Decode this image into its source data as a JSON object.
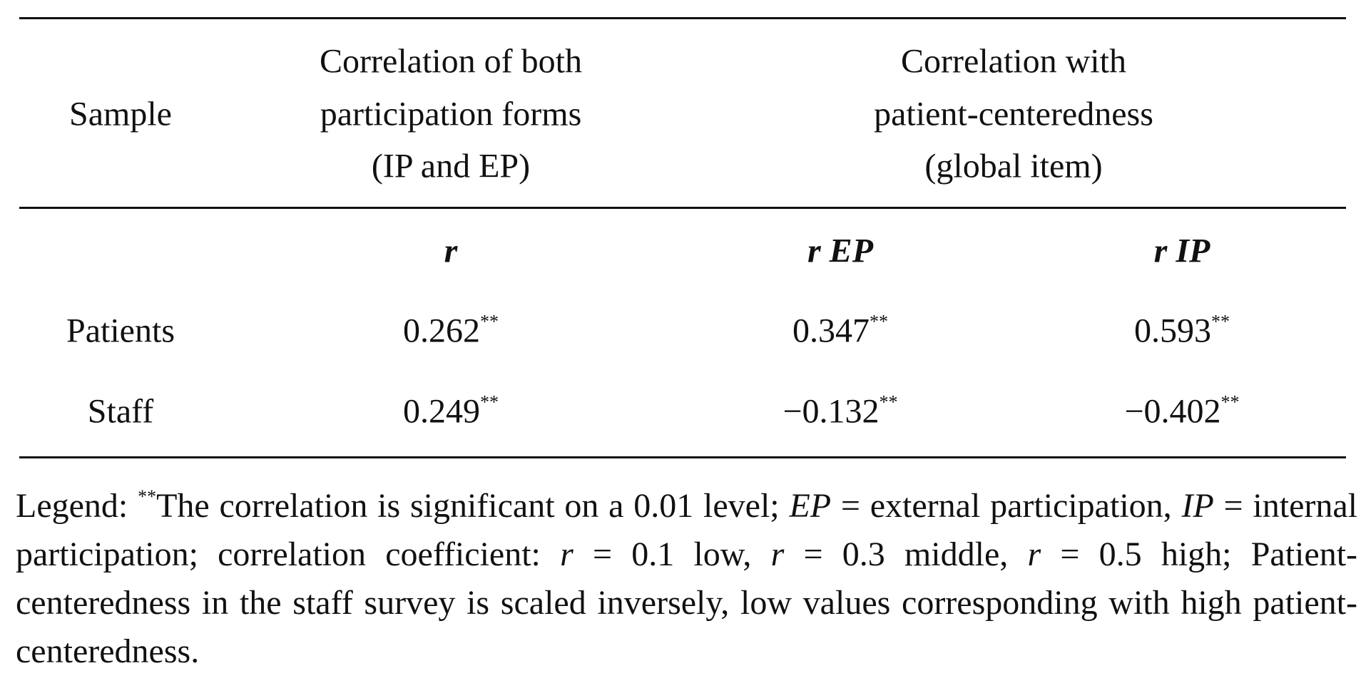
{
  "table": {
    "header": [
      "Sample",
      [
        "Correlation of both",
        "participation forms",
        "(IP and EP)"
      ],
      [
        "Correlation with",
        "patient-centeredness",
        "(global item)"
      ]
    ],
    "subheader": [
      "r",
      "r EP",
      "r IP"
    ],
    "rows": [
      {
        "label": "Patients",
        "cells": [
          {
            "value": "0.262",
            "note": "**"
          },
          {
            "value": "0.347",
            "note": "**"
          },
          {
            "value": "0.593",
            "note": "**"
          }
        ]
      },
      {
        "label": "Staff",
        "cells": [
          {
            "value": "0.249",
            "note": "**"
          },
          {
            "value": "−0.132",
            "note": "**"
          },
          {
            "value": "−0.402",
            "note": "**"
          }
        ]
      }
    ]
  },
  "legend": [
    "Legend: ",
    "**",
    "The correlation is significant on a 0.01 level; ",
    "EP",
    " = external participation, ",
    "IP",
    " = internal participation; correlation coefficient: ",
    "r",
    " = 0.1 low, ",
    "r",
    " = 0.3 middle, ",
    "r",
    " = 0.5 high; Patient-centeredness in the staff survey is scaled inversely, low values corresponding with high patient-centeredness."
  ]
}
